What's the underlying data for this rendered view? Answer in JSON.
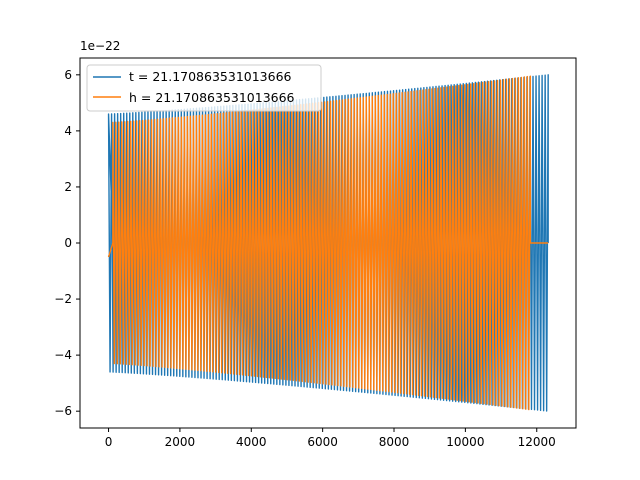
{
  "chart_data": {
    "type": "line",
    "offset_text": "1e−22",
    "scale": 1e-22,
    "xlim": [
      -800,
      13100
    ],
    "ylim": [
      -6.6,
      6.6
    ],
    "xticks": [
      0,
      2000,
      4000,
      6000,
      8000,
      10000,
      12000
    ],
    "xtick_labels": [
      "0",
      "2000",
      "4000",
      "6000",
      "8000",
      "10000",
      "12000"
    ],
    "yticks": [
      -6,
      -4,
      -2,
      0,
      2,
      4,
      6
    ],
    "ytick_labels": [
      "−6",
      "−4",
      "−2",
      "0",
      "2",
      "4",
      "6"
    ],
    "legend_position": "upper-left",
    "series": [
      {
        "name": "t = 21.170863531013666",
        "color": "#1f77b4",
        "pre_zero_x_range": [
          0,
          120
        ],
        "x_range": [
          0,
          12320
        ],
        "amplitude_start": 4.6,
        "amplitude_end": 6.0,
        "cycles": 145,
        "zero_after": 12320
      },
      {
        "name": "h = 21.170863531013666",
        "color": "#ff7f0e",
        "pre_zero_x_range": [
          0,
          120
        ],
        "x_range": [
          120,
          11820
        ],
        "amplitude_start": 4.3,
        "amplitude_end": 5.95,
        "cycles": 140,
        "zero_after": 11820,
        "zero_until": 12320
      }
    ]
  }
}
